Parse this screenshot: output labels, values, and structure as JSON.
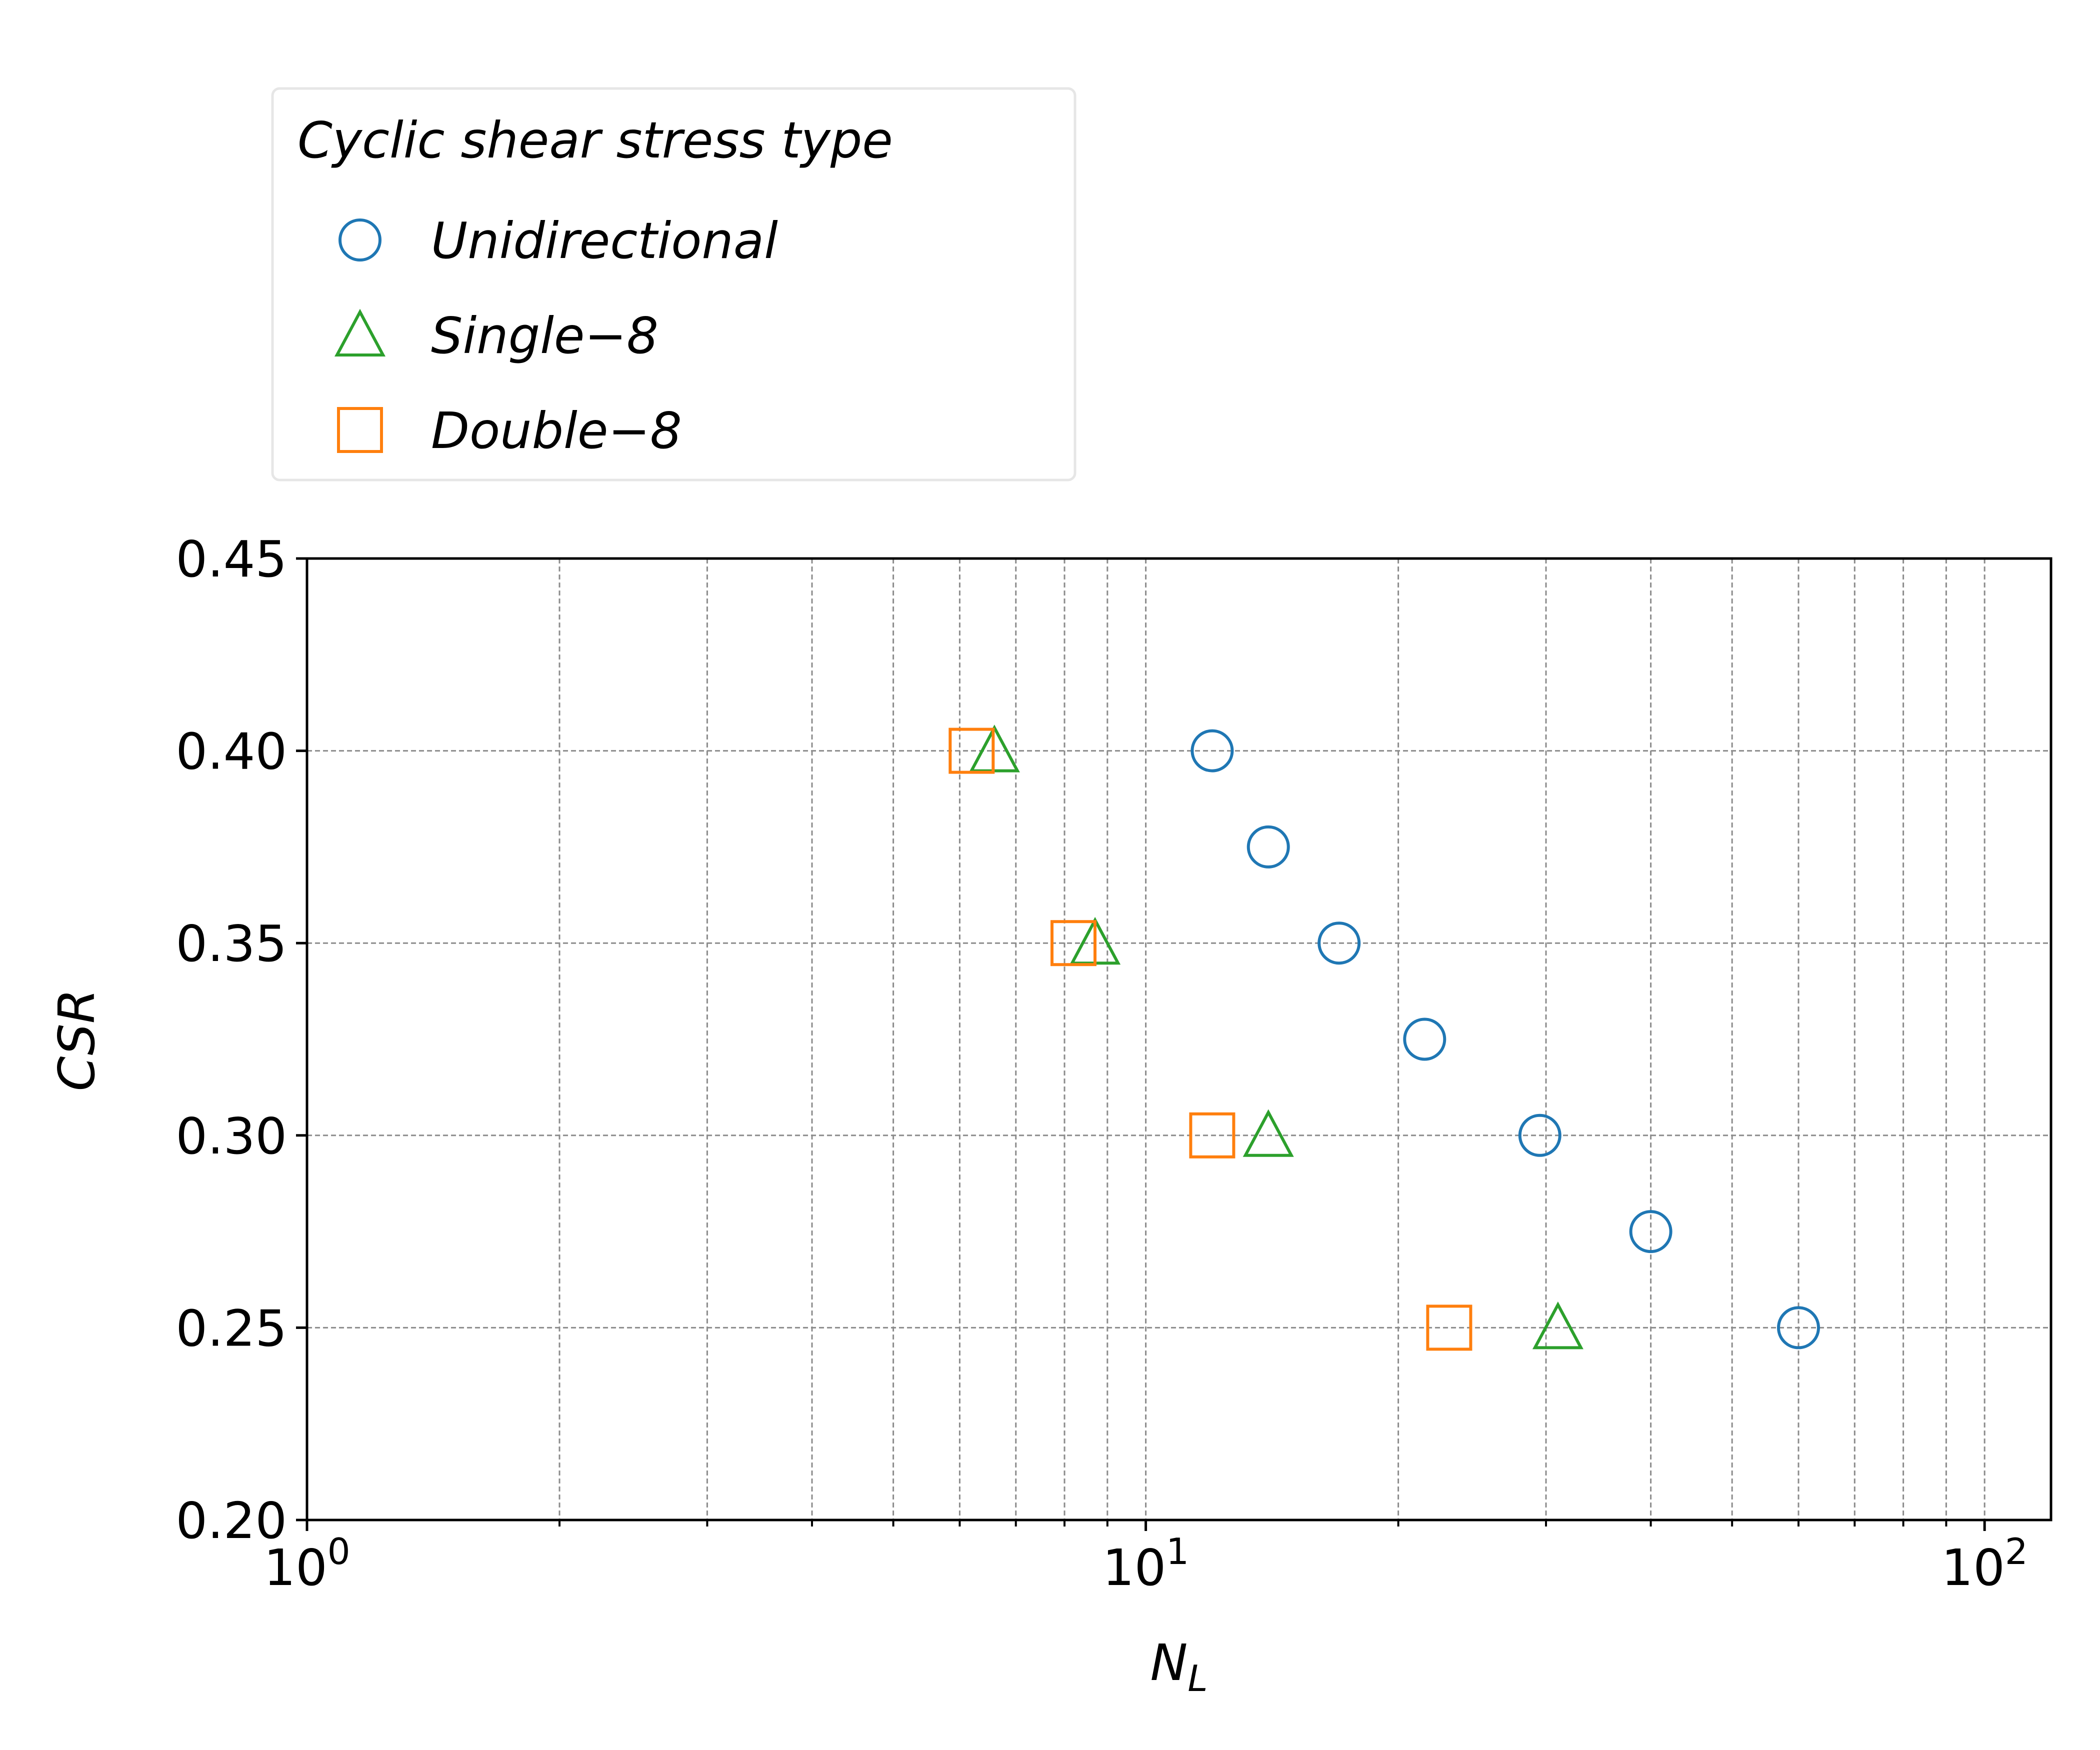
{
  "chart_data": {
    "type": "scatter",
    "title": "",
    "xlabel": "N",
    "xlabel_sub": "L",
    "ylabel": "CSR",
    "xscale": "log",
    "xlim": [
      1,
      120
    ],
    "ylim": [
      0.2,
      0.45
    ],
    "grid": true,
    "x_ticks": [
      {
        "value": 1,
        "base": "10",
        "exp": "0"
      },
      {
        "value": 10,
        "base": "10",
        "exp": "1"
      },
      {
        "value": 100,
        "base": "10",
        "exp": "2"
      }
    ],
    "y_ticks": [
      "0.20",
      "0.25",
      "0.30",
      "0.35",
      "0.40",
      "0.45"
    ],
    "legend": {
      "title": "Cyclic shear stress type",
      "placement": "above-top-left"
    },
    "series": [
      {
        "name": "Unidirectional",
        "marker": "circle",
        "color": "#1f77b4",
        "points": [
          {
            "x": 12.0,
            "y": 0.4
          },
          {
            "x": 14.0,
            "y": 0.375
          },
          {
            "x": 17.0,
            "y": 0.35
          },
          {
            "x": 21.5,
            "y": 0.325
          },
          {
            "x": 29.5,
            "y": 0.3
          },
          {
            "x": 40.0,
            "y": 0.275
          },
          {
            "x": 60.0,
            "y": 0.25
          }
        ]
      },
      {
        "name": "Single−8",
        "marker": "triangle",
        "color": "#2ca02c",
        "points": [
          {
            "x": 6.6,
            "y": 0.4
          },
          {
            "x": 8.7,
            "y": 0.35
          },
          {
            "x": 14.0,
            "y": 0.3
          },
          {
            "x": 31.0,
            "y": 0.25
          }
        ]
      },
      {
        "name": "Double−8",
        "marker": "square",
        "color": "#ff7f0e",
        "points": [
          {
            "x": 6.2,
            "y": 0.4
          },
          {
            "x": 8.2,
            "y": 0.35
          },
          {
            "x": 12.0,
            "y": 0.3
          },
          {
            "x": 23.0,
            "y": 0.25
          }
        ]
      }
    ]
  }
}
